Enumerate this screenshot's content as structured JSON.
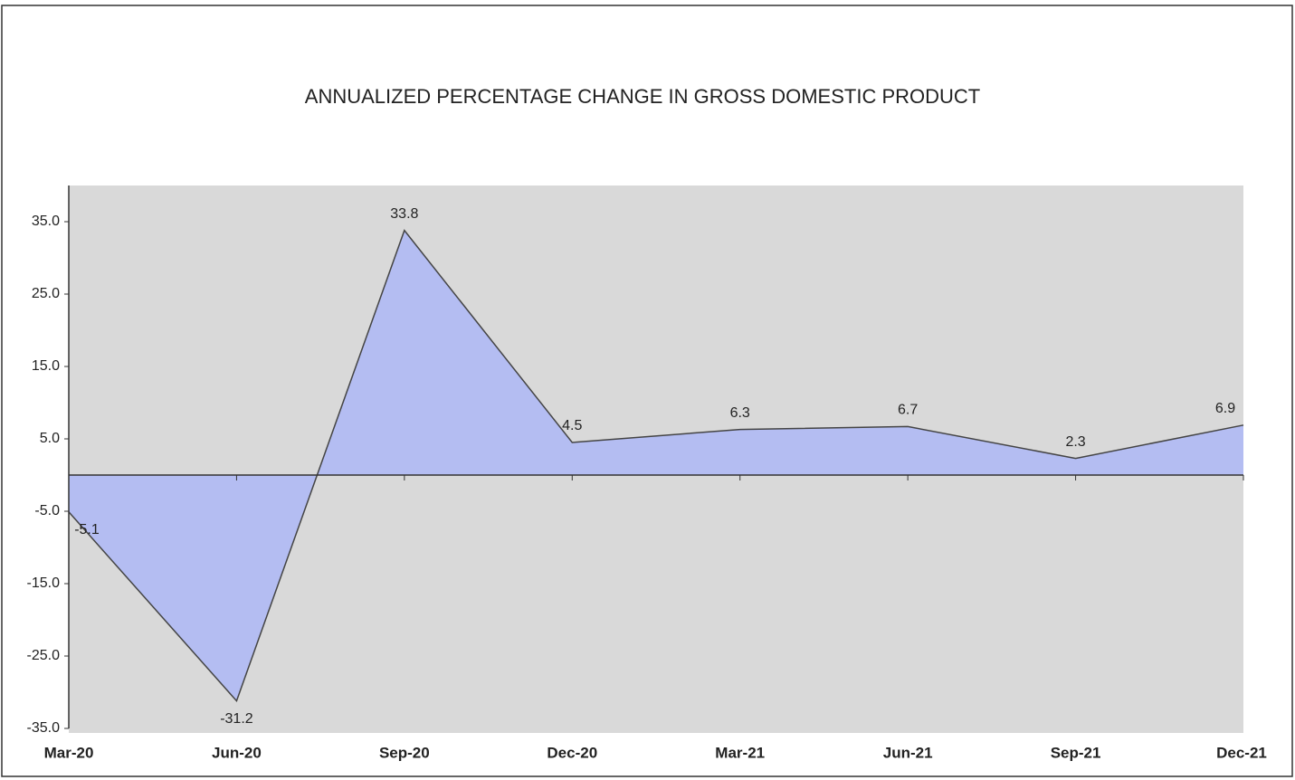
{
  "chart_data": {
    "type": "area",
    "title": "ANNUALIZED PERCENTAGE CHANGE IN GROSS DOMESTIC PRODUCT",
    "categories": [
      "Mar-20",
      "Jun-20",
      "Sep-20",
      "Dec-20",
      "Mar-21",
      "Jun-21",
      "Sep-21",
      "Dec-21"
    ],
    "values": [
      -5.1,
      -31.2,
      33.8,
      4.5,
      6.3,
      6.7,
      2.3,
      6.9
    ],
    "color": "#b4bdf2",
    "line_color": "#444444",
    "background": "#d9d9d9",
    "ylim": [
      -35,
      40
    ],
    "yticks": [
      {
        "value": -35,
        "label": "-35.0"
      },
      {
        "value": -25,
        "label": "-25.0"
      },
      {
        "value": -15,
        "label": "-15.0"
      },
      {
        "value": -5,
        "label": "-5.0"
      },
      {
        "value": 5,
        "label": "5.0"
      },
      {
        "value": 15,
        "label": "15.0"
      },
      {
        "value": 25,
        "label": "25.0"
      },
      {
        "value": 35,
        "label": "35.0"
      }
    ],
    "grid": false
  }
}
